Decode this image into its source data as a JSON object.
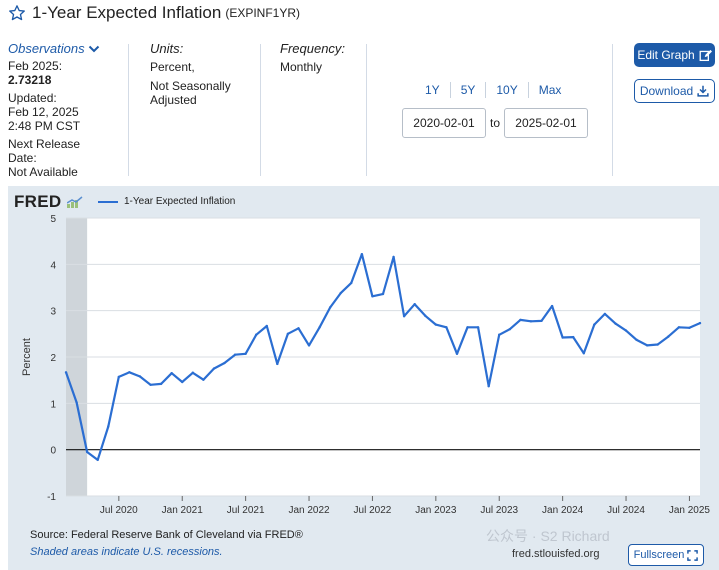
{
  "header": {
    "title": "1-Year Expected Inflation",
    "series_id": "(EXPINF1YR)"
  },
  "observations": {
    "label": "Observations",
    "period": "Feb 2025:",
    "value": "2.73218",
    "updated_label": "Updated:",
    "updated_date": "Feb 12, 2025",
    "updated_time": "2:48 PM CST",
    "next_release_label": "Next Release Date:",
    "next_release_value": "Not Available"
  },
  "units": {
    "label": "Units:",
    "line1": "Percent,",
    "line2": "Not Seasonally Adjusted"
  },
  "frequency": {
    "label": "Frequency:",
    "value": "Monthly"
  },
  "range": {
    "buttons": [
      "1Y",
      "5Y",
      "10Y",
      "Max"
    ],
    "start": "2020-02-01",
    "to_label": "to",
    "end": "2025-02-01"
  },
  "actions": {
    "edit_graph": "Edit Graph",
    "download": "Download",
    "fullscreen": "Fullscreen"
  },
  "chart_header": {
    "logo": "FRED",
    "legend": "1-Year Expected Inflation"
  },
  "footer": {
    "source": "Source: Federal Reserve Bank of Cleveland via FRED®",
    "shaded_note": "Shaded areas indicate U.S. recessions.",
    "credit": "fred.stlouisfed.org",
    "watermark": "公众号 · S2 Richard"
  },
  "colors": {
    "line": "#2b6ed2",
    "accent": "#1d5aa8",
    "chart_bg": "#e1e9f0",
    "recession": "#cfd5da"
  },
  "chart_data": {
    "type": "line",
    "title": "",
    "xlabel": "",
    "ylabel": "Percent",
    "ylim": [
      -1,
      5
    ],
    "yticks": [
      -1,
      0,
      1,
      2,
      3,
      4,
      5
    ],
    "xticks": [
      {
        "label": "Jul 2020",
        "date": "2020-07"
      },
      {
        "label": "Jan 2021",
        "date": "2021-01"
      },
      {
        "label": "Jul 2021",
        "date": "2021-07"
      },
      {
        "label": "Jan 2022",
        "date": "2022-01"
      },
      {
        "label": "Jul 2022",
        "date": "2022-07"
      },
      {
        "label": "Jan 2023",
        "date": "2023-01"
      },
      {
        "label": "Jul 2023",
        "date": "2023-07"
      },
      {
        "label": "Jan 2024",
        "date": "2024-01"
      },
      {
        "label": "Jul 2024",
        "date": "2024-07"
      },
      {
        "label": "Jan 2025",
        "date": "2025-01"
      }
    ],
    "recessions": [
      {
        "start": "2020-02",
        "end": "2020-04"
      }
    ],
    "grid": true,
    "legend": "top-left",
    "series": [
      {
        "name": "1-Year Expected Inflation",
        "x": [
          "2020-02",
          "2020-03",
          "2020-04",
          "2020-05",
          "2020-06",
          "2020-07",
          "2020-08",
          "2020-09",
          "2020-10",
          "2020-11",
          "2020-12",
          "2021-01",
          "2021-02",
          "2021-03",
          "2021-04",
          "2021-05",
          "2021-06",
          "2021-07",
          "2021-08",
          "2021-09",
          "2021-10",
          "2021-11",
          "2021-12",
          "2022-01",
          "2022-02",
          "2022-03",
          "2022-04",
          "2022-05",
          "2022-06",
          "2022-07",
          "2022-08",
          "2022-09",
          "2022-10",
          "2022-11",
          "2022-12",
          "2023-01",
          "2023-02",
          "2023-03",
          "2023-04",
          "2023-05",
          "2023-06",
          "2023-07",
          "2023-08",
          "2023-09",
          "2023-10",
          "2023-11",
          "2023-12",
          "2024-01",
          "2024-02",
          "2024-03",
          "2024-04",
          "2024-05",
          "2024-06",
          "2024-07",
          "2024-08",
          "2024-09",
          "2024-10",
          "2024-11",
          "2024-12",
          "2025-01",
          "2025-02"
        ],
        "values": [
          1.67,
          1.02,
          -0.05,
          -0.22,
          0.5,
          1.57,
          1.67,
          1.58,
          1.4,
          1.42,
          1.65,
          1.46,
          1.66,
          1.51,
          1.75,
          1.87,
          2.05,
          2.07,
          2.48,
          2.67,
          1.85,
          2.5,
          2.62,
          2.25,
          2.64,
          3.07,
          3.38,
          3.6,
          4.22,
          3.31,
          3.36,
          4.16,
          2.88,
          3.14,
          2.89,
          2.7,
          2.64,
          2.07,
          2.64,
          2.64,
          1.37,
          2.48,
          2.6,
          2.8,
          2.77,
          2.78,
          3.1,
          2.42,
          2.43,
          2.08,
          2.7,
          2.93,
          2.72,
          2.57,
          2.37,
          2.25,
          2.27,
          2.44,
          2.64,
          2.63,
          2.73218
        ]
      }
    ]
  }
}
